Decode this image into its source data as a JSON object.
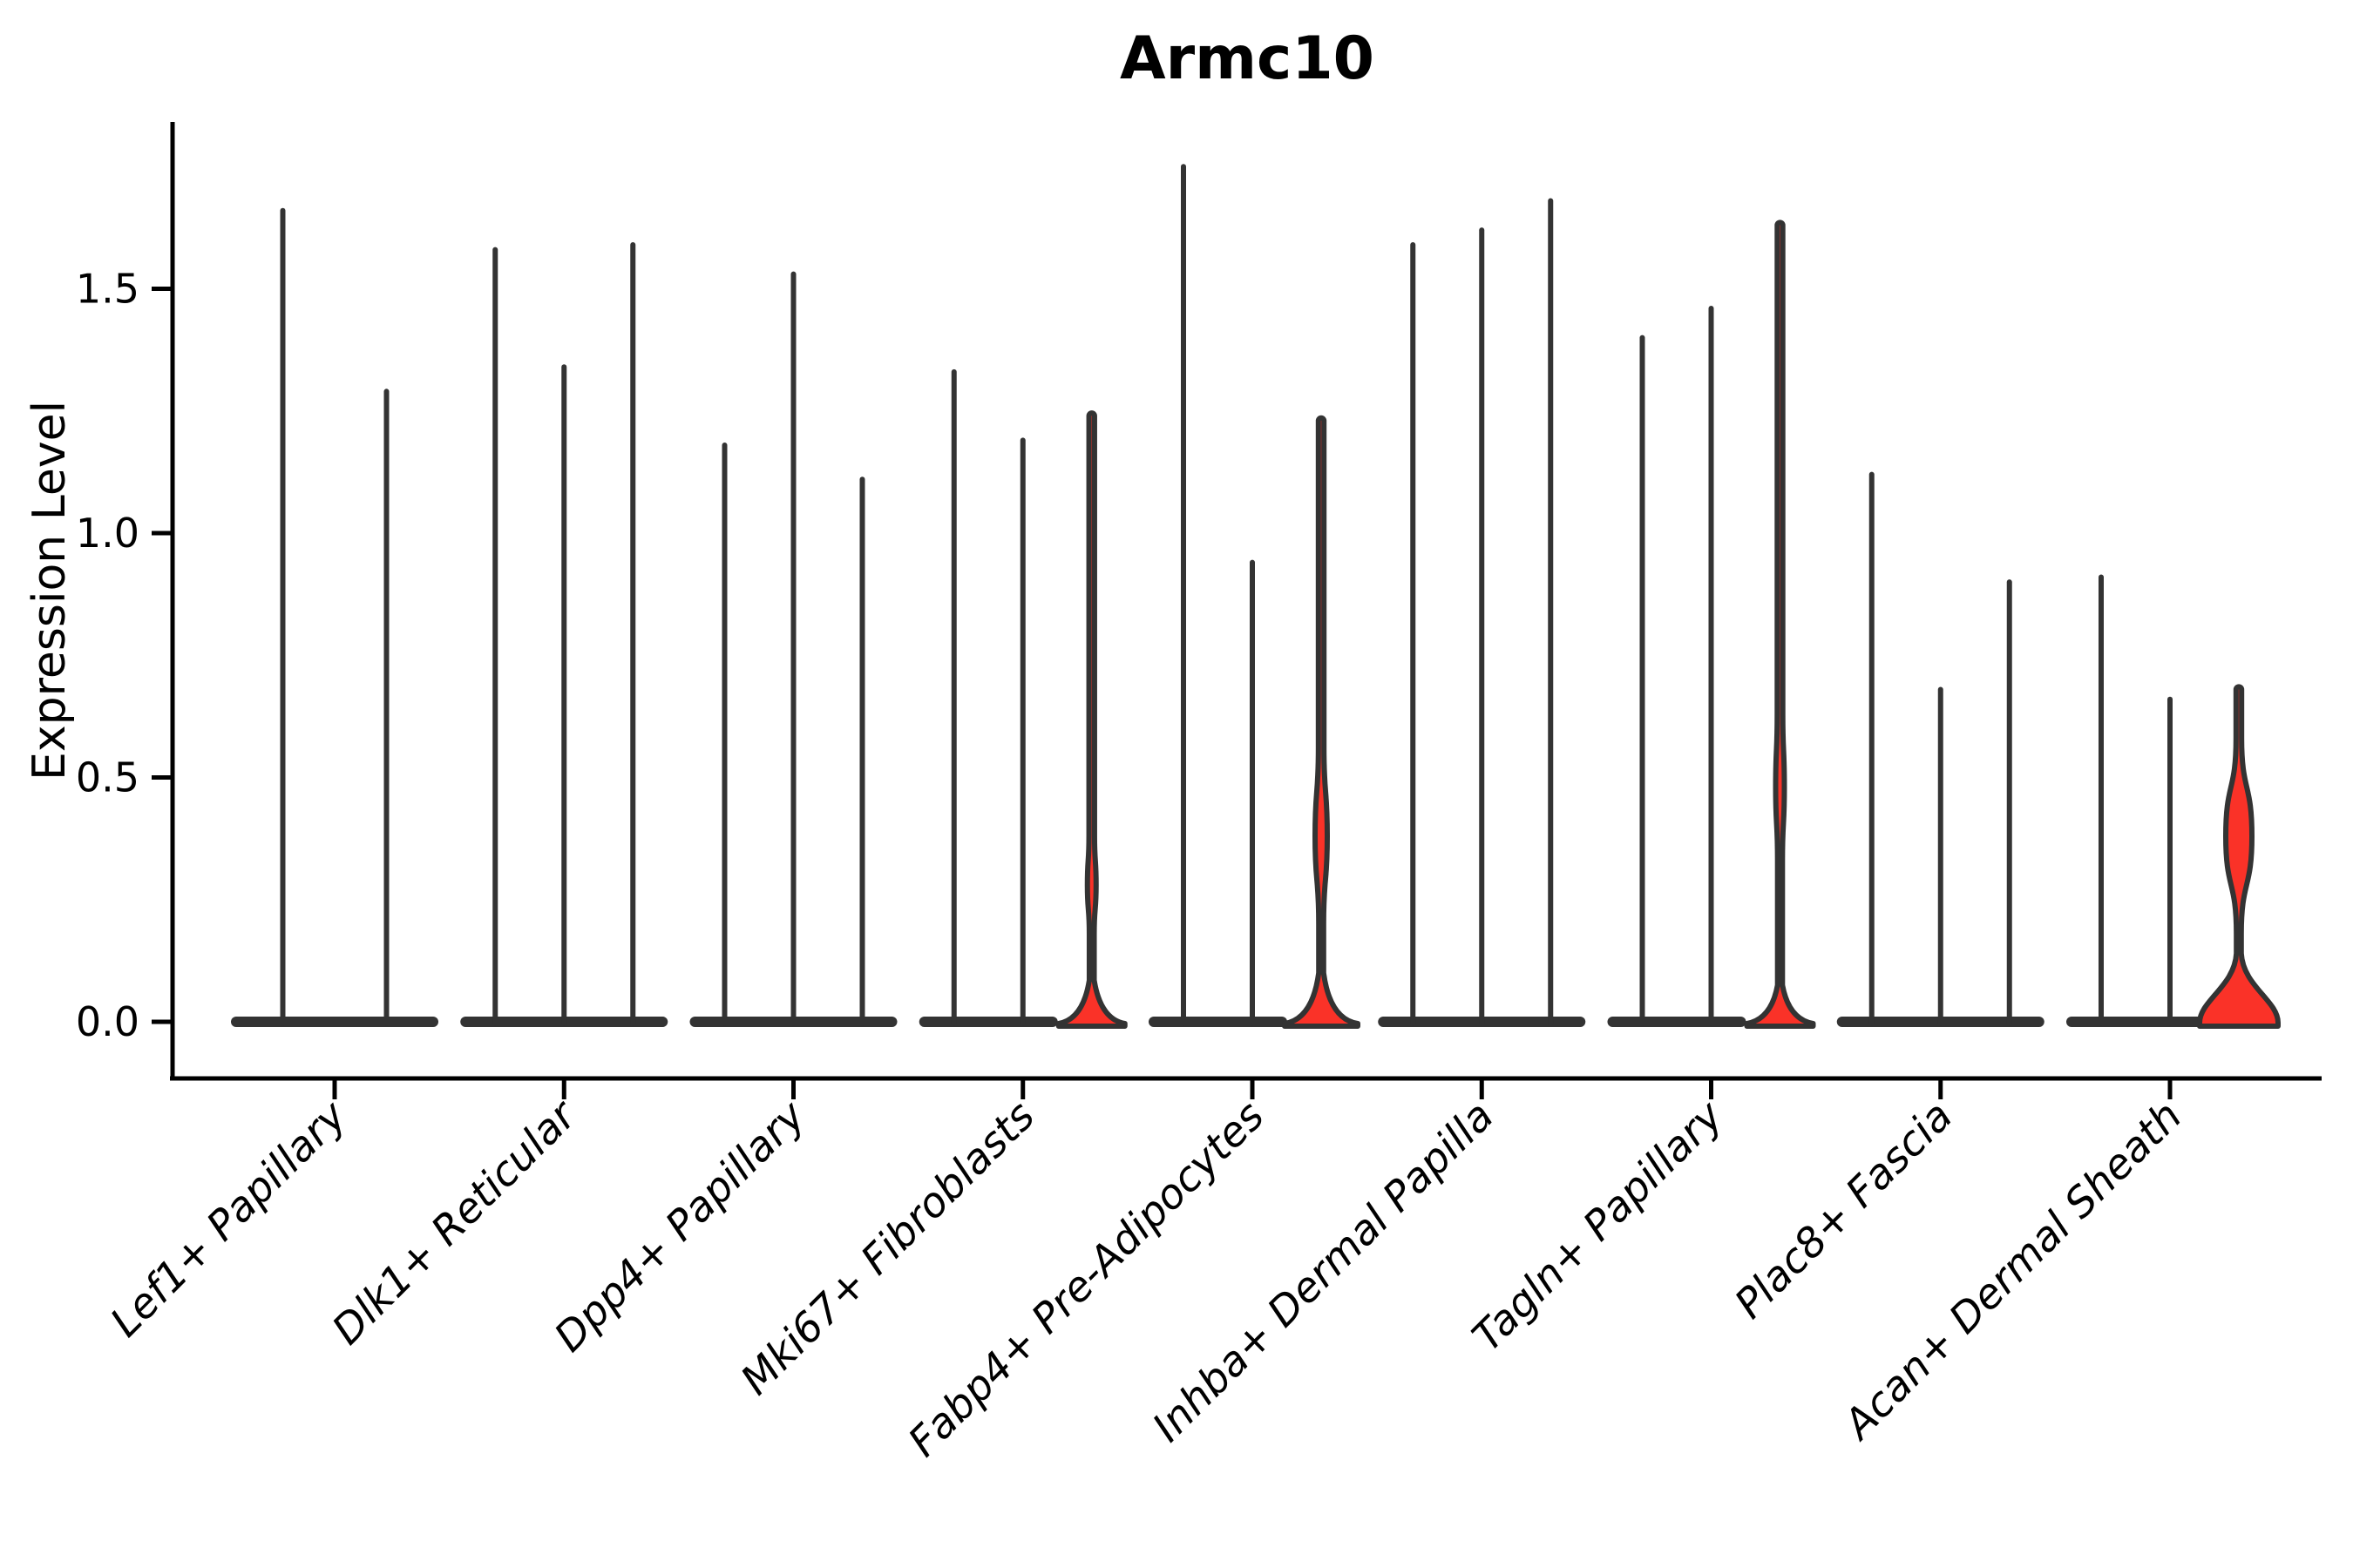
{
  "title": "Armc10",
  "y_axis": {
    "label": "Expression Level",
    "tick_labels": [
      "0.0",
      "0.5",
      "1.0",
      "1.5"
    ]
  },
  "x_axis": {
    "tick_labels": [
      "Lef1+ Papillary",
      "Dlk1+ Reticular",
      "Dpp4+ Papillary",
      "Mki67+ Fibroblasts",
      "Fabp4+ Pre-Adipocytes",
      "Inhba+ Dermal Papilla",
      "Tagln+ Papillary",
      "Plac8+ Fascia",
      "Acan+ Dermal Sheath"
    ]
  },
  "colors": {
    "violin_fill": "#fa3228",
    "violin_outline": "#333333",
    "axis": "#000000"
  },
  "chart_data": {
    "type": "violin",
    "title": "Armc10",
    "xlabel": "",
    "ylabel": "Expression Level",
    "ylim": [
      -0.06,
      1.82
    ],
    "yticks": [
      0,
      0.5,
      1,
      1.5
    ],
    "ytick_labels": [
      "0.0",
      "0.5",
      "1.0",
      "1.5"
    ],
    "grid": false,
    "legend": null,
    "fill_color": "#fa3228",
    "line_color": "#333333",
    "categories": [
      "Lef1+ Papillary",
      "Dlk1+ Reticular",
      "Dpp4+ Papillary",
      "Mki67+ Fibroblasts",
      "Fabp4+ Pre-Adipocytes",
      "Inhba+ Dermal Papilla",
      "Tagln+ Papillary",
      "Plac8+ Fascia",
      "Acan+ Dermal Sheath"
    ],
    "groups": [
      {
        "category": "Lef1+ Papillary",
        "violins": [
          {
            "max": 1.66,
            "filled": false
          },
          {
            "max": 1.29,
            "filled": false
          }
        ]
      },
      {
        "category": "Dlk1+ Reticular",
        "violins": [
          {
            "max": 1.58,
            "filled": false
          },
          {
            "max": 1.34,
            "filled": false
          },
          {
            "max": 1.59,
            "filled": false
          }
        ]
      },
      {
        "category": "Dpp4+ Papillary",
        "violins": [
          {
            "max": 1.18,
            "filled": false
          },
          {
            "max": 1.53,
            "filled": false
          },
          {
            "max": 1.11,
            "filled": false
          }
        ]
      },
      {
        "category": "Mki67+ Fibroblasts",
        "violins": [
          {
            "max": 1.33,
            "filled": false
          },
          {
            "max": 1.19,
            "filled": false
          },
          {
            "max": 1.24,
            "filled": true,
            "bulge": {
              "center": 0.28,
              "halfheight": 0.1,
              "halfwidth": 5
            },
            "base": {
              "height": 0.085,
              "halfwidth": 38,
              "style": "trumpet"
            }
          }
        ]
      },
      {
        "category": "Fabp4+ Pre-Adipocytes",
        "violins": [
          {
            "max": 1.75,
            "filled": false
          },
          {
            "max": 0.94,
            "filled": false
          },
          {
            "max": 1.23,
            "filled": true,
            "bulge": {
              "center": 0.38,
              "halfheight": 0.18,
              "halfwidth": 7
            },
            "base": {
              "height": 0.1,
              "halfwidth": 42,
              "style": "trumpet"
            }
          }
        ]
      },
      {
        "category": "Inhba+ Dermal Papilla",
        "violins": [
          {
            "max": 1.59,
            "filled": false
          },
          {
            "max": 1.62,
            "filled": false
          },
          {
            "max": 1.68,
            "filled": false
          }
        ]
      },
      {
        "category": "Tagln+ Papillary",
        "violins": [
          {
            "max": 1.4,
            "filled": false
          },
          {
            "max": 1.46,
            "filled": false
          },
          {
            "max": 1.63,
            "filled": true,
            "bulge": {
              "center": 0.48,
              "halfheight": 0.15,
              "halfwidth": 5
            },
            "base": {
              "height": 0.075,
              "halfwidth": 38,
              "style": "trumpet"
            }
          }
        ]
      },
      {
        "category": "Plac8+ Fascia",
        "violins": [
          {
            "max": 1.12,
            "filled": false
          },
          {
            "max": 0.68,
            "filled": false
          },
          {
            "max": 0.9,
            "filled": false
          }
        ]
      },
      {
        "category": "Acan+ Dermal Sheath",
        "violins": [
          {
            "max": 0.91,
            "filled": false
          },
          {
            "max": 0.66,
            "filled": false
          },
          {
            "max": 0.68,
            "filled": true,
            "bulge": {
              "center": 0.38,
              "halfheight": 0.2,
              "halfwidth": 15
            },
            "base": {
              "height": 0.14,
              "halfwidth": 45,
              "style": "bell"
            }
          }
        ]
      }
    ]
  }
}
